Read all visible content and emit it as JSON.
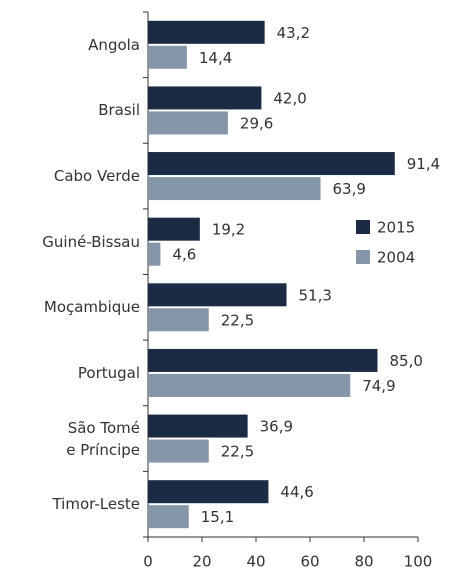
{
  "chart_data": {
    "type": "bar",
    "orientation": "horizontal",
    "categories": [
      "Angola",
      "Brasil",
      "Cabo Verde",
      "Guiné-Bissau",
      "Moçambique",
      "Portugal",
      "São Tomé\ne Príncipe",
      "Timor-Leste"
    ],
    "series": [
      {
        "name": "2015",
        "color": "#1c2b44",
        "values": [
          43.2,
          42.0,
          91.4,
          19.2,
          51.3,
          85.0,
          36.9,
          44.6
        ],
        "value_labels": [
          "43,2",
          "42,0",
          "91,4",
          "19,2",
          "51,3",
          "85,0",
          "36,9",
          "44,6"
        ]
      },
      {
        "name": "2004",
        "color": "#8496a8",
        "values": [
          14.4,
          29.6,
          63.9,
          4.6,
          22.5,
          74.9,
          22.5,
          15.1
        ],
        "value_labels": [
          "14,4",
          "29,6",
          "63,9",
          "4,6",
          "22,5",
          "74,9",
          "22,5",
          "15,1"
        ]
      }
    ],
    "xlim": [
      0,
      100
    ],
    "xticks": [
      0,
      20,
      40,
      60,
      80,
      100
    ],
    "legend": "right"
  }
}
